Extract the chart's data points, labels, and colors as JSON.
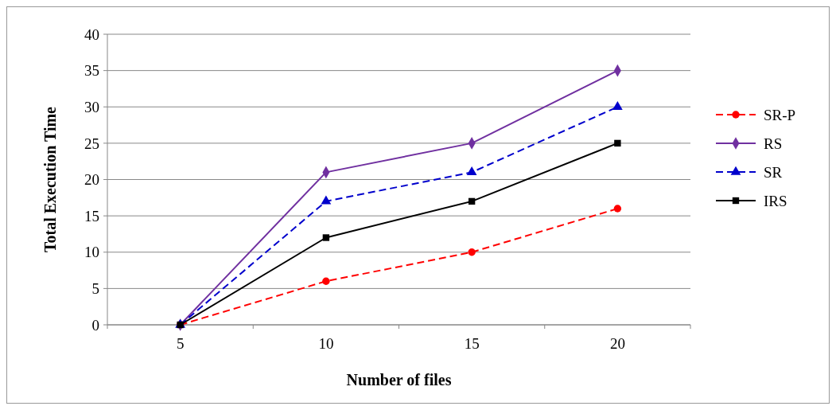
{
  "chart_data": {
    "type": "line",
    "xlabel": "Number of files",
    "ylabel": "Total Execution Time",
    "categories": [
      "5",
      "10",
      "15",
      "20"
    ],
    "ylim": [
      0,
      40
    ],
    "yticks": [
      0,
      5,
      10,
      15,
      20,
      25,
      30,
      35,
      40
    ],
    "grid": "y",
    "legend": "right",
    "series": [
      {
        "name": "SR-P",
        "color": "#ff0000",
        "values": [
          0,
          6,
          10,
          16
        ],
        "marker": "circle",
        "line_style": "dashed"
      },
      {
        "name": "RS",
        "color": "#7030a0",
        "values": [
          0,
          21,
          25,
          35
        ],
        "marker": "diamond",
        "line_style": "solid"
      },
      {
        "name": "SR",
        "color": "#0000cc",
        "values": [
          0,
          17,
          21,
          30
        ],
        "marker": "triangle",
        "line_style": "dashed"
      },
      {
        "name": "IRS",
        "color": "#000000",
        "values": [
          0,
          12,
          17,
          25
        ],
        "marker": "square",
        "line_style": "solid"
      }
    ]
  }
}
